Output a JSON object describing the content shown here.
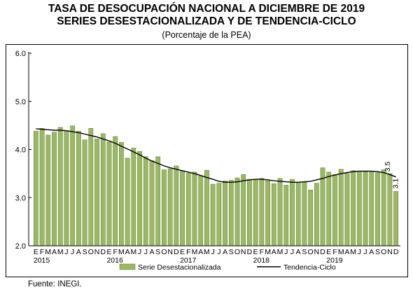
{
  "title_line1": "Tasa de desocupación nacional a diciembre de 2019",
  "title_line2": "Series desestacionalizada y de tendencia-ciclo",
  "subtitle": "(Porcentaje de la PEA)",
  "source": "Fuente: INEGI.",
  "chart_data": {
    "type": "bar",
    "title": "Tasa de desocupación nacional a diciembre de 2019",
    "subtitle": "(Porcentaje de la PEA)",
    "xlabel": "",
    "ylabel": "",
    "ylim": [
      2.0,
      6.0
    ],
    "yticks": [
      "2.0",
      "3.0",
      "4.0",
      "5.0",
      "6.0"
    ],
    "grid": false,
    "legend_position": "bottom",
    "month_labels": [
      "E",
      "F",
      "M",
      "A",
      "M",
      "J",
      "J",
      "A",
      "S",
      "O",
      "N",
      "D"
    ],
    "year_labels": [
      "2015",
      "2016",
      "2017",
      "2018",
      "2019"
    ],
    "categories": [
      "E 2015",
      "F 2015",
      "M 2015",
      "A 2015",
      "M 2015",
      "J 2015",
      "J 2015",
      "A 2015",
      "S 2015",
      "O 2015",
      "N 2015",
      "D 2015",
      "E 2016",
      "F 2016",
      "M 2016",
      "A 2016",
      "M 2016",
      "J 2016",
      "J 2016",
      "A 2016",
      "S 2016",
      "O 2016",
      "N 2016",
      "D 2016",
      "E 2017",
      "F 2017",
      "M 2017",
      "A 2017",
      "M 2017",
      "J 2017",
      "J 2017",
      "A 2017",
      "S 2017",
      "O 2017",
      "N 2017",
      "D 2017",
      "E 2018",
      "F 2018",
      "M 2018",
      "A 2018",
      "M 2018",
      "J 2018",
      "J 2018",
      "A 2018",
      "S 2018",
      "O 2018",
      "N 2018",
      "D 2018",
      "E 2019",
      "F 2019",
      "M 2019",
      "A 2019",
      "M 2019",
      "J 2019",
      "J 2019",
      "A 2019",
      "S 2019",
      "O 2019",
      "N 2019",
      "D 2019"
    ],
    "series": [
      {
        "name": "Serie Desestacionalizada",
        "color": "#9bb864",
        "values": [
          4.38,
          4.44,
          4.3,
          4.36,
          4.46,
          4.39,
          4.49,
          4.38,
          4.2,
          4.44,
          4.22,
          4.33,
          4.16,
          4.27,
          4.15,
          3.82,
          4.03,
          3.96,
          3.85,
          3.77,
          3.85,
          3.58,
          3.6,
          3.66,
          3.55,
          3.51,
          3.53,
          3.45,
          3.57,
          3.28,
          3.3,
          3.35,
          3.36,
          3.41,
          3.48,
          3.38,
          3.38,
          3.4,
          3.35,
          3.29,
          3.4,
          3.26,
          3.38,
          3.31,
          3.32,
          3.16,
          3.3,
          3.62,
          3.53,
          3.48,
          3.59,
          3.5,
          3.56,
          3.55,
          3.54,
          3.55,
          3.52,
          3.58,
          3.5,
          3.13
        ]
      },
      {
        "name": "Tendencia-Ciclo",
        "color": "#000000",
        "values": [
          4.43,
          4.42,
          4.41,
          4.4,
          4.4,
          4.39,
          4.37,
          4.35,
          4.32,
          4.29,
          4.26,
          4.22,
          4.18,
          4.13,
          4.07,
          4.01,
          3.95,
          3.89,
          3.82,
          3.76,
          3.71,
          3.66,
          3.62,
          3.59,
          3.56,
          3.53,
          3.5,
          3.46,
          3.42,
          3.38,
          3.34,
          3.32,
          3.32,
          3.33,
          3.35,
          3.37,
          3.38,
          3.38,
          3.37,
          3.35,
          3.34,
          3.33,
          3.32,
          3.32,
          3.33,
          3.34,
          3.37,
          3.4,
          3.44,
          3.47,
          3.5,
          3.52,
          3.54,
          3.55,
          3.55,
          3.55,
          3.54,
          3.52,
          3.48,
          3.43
        ]
      }
    ],
    "annotations": [
      {
        "text": "3.5",
        "series": "Tendencia-Ciclo",
        "index": 58
      },
      {
        "text": "3.1",
        "series": "Serie Desestacionalizada",
        "index": 59
      }
    ]
  }
}
